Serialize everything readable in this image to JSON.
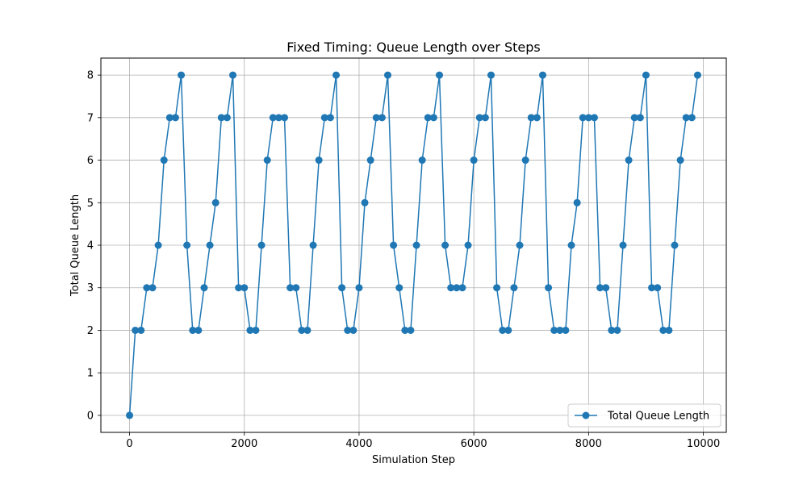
{
  "chart_data": {
    "type": "line",
    "title": "Fixed Timing: Queue Length over Steps",
    "xlabel": "Simulation Step",
    "ylabel": "Total Queue Length",
    "xlim": [
      -500,
      10400
    ],
    "ylim": [
      -0.4,
      8.4
    ],
    "xticks": [
      0,
      2000,
      4000,
      6000,
      8000,
      10000
    ],
    "yticks": [
      0,
      1,
      2,
      3,
      4,
      5,
      6,
      7,
      8
    ],
    "grid": true,
    "legend_position": "lower-right",
    "series": [
      {
        "name": "Total Queue Length",
        "color": "#1f77b4",
        "marker": "circle",
        "x": [
          0,
          100,
          200,
          300,
          400,
          500,
          600,
          700,
          800,
          900,
          1000,
          1100,
          1200,
          1300,
          1400,
          1500,
          1600,
          1700,
          1800,
          1900,
          2000,
          2100,
          2200,
          2300,
          2400,
          2500,
          2600,
          2700,
          2800,
          2900,
          3000,
          3100,
          3200,
          3300,
          3400,
          3500,
          3600,
          3700,
          3800,
          3900,
          4000,
          4100,
          4200,
          4300,
          4400,
          4500,
          4600,
          4700,
          4800,
          4900,
          5000,
          5100,
          5200,
          5300,
          5400,
          5500,
          5600,
          5700,
          5800,
          5900,
          6000,
          6100,
          6200,
          6300,
          6400,
          6500,
          6600,
          6700,
          6800,
          6900,
          7000,
          7100,
          7200,
          7300,
          7400,
          7500,
          7600,
          7700,
          7800,
          7900,
          8000,
          8100,
          8200,
          8300,
          8400,
          8500,
          8600,
          8700,
          8800,
          8900,
          9000,
          9100,
          9200,
          9300,
          9400,
          9500,
          9600,
          9700,
          9800,
          9900
        ],
        "y": [
          0,
          2,
          2,
          3,
          3,
          4,
          6,
          7,
          7,
          8,
          4,
          2,
          2,
          3,
          4,
          5,
          7,
          7,
          8,
          3,
          3,
          2,
          2,
          4,
          6,
          7,
          7,
          7,
          3,
          3,
          2,
          2,
          4,
          6,
          7,
          7,
          8,
          3,
          2,
          2,
          3,
          5,
          6,
          7,
          7,
          8,
          4,
          3,
          2,
          2,
          4,
          6,
          7,
          7,
          8,
          4,
          3,
          3,
          3,
          4,
          6,
          7,
          7,
          8,
          3,
          2,
          2,
          3,
          4,
          6,
          7,
          7,
          8,
          3,
          2,
          2,
          2,
          4,
          5,
          7,
          7,
          7,
          3,
          3,
          2,
          2,
          4,
          6,
          7,
          7,
          8,
          3,
          3,
          2,
          2,
          4,
          6,
          7,
          7,
          8
        ]
      }
    ]
  }
}
